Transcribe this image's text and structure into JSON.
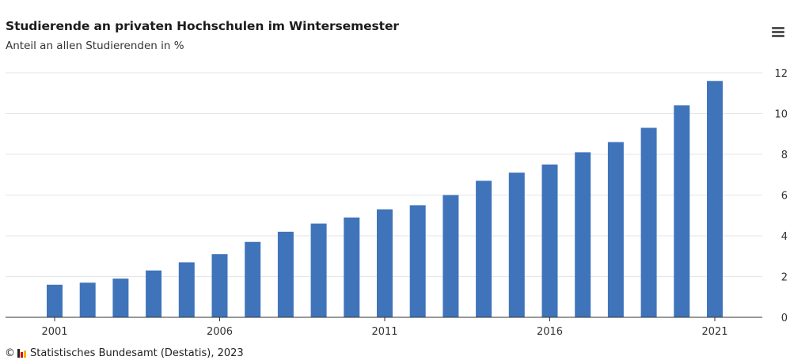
{
  "chart_title": "Studierende an privaten Hochschulen im Wintersemester",
  "chart_subtitle": "Anteil an allen Studierenden in %",
  "menu": {
    "icon": "hamburger-menu-icon"
  },
  "footer": {
    "copyright": "©",
    "logo_icon": "destatis-logo-icon",
    "source": "Statistisches Bundesamt (Destatis), 2023"
  },
  "colors": {
    "bar": "#3f74bb",
    "grid": "#e6e6e6",
    "axis": "#333333"
  },
  "chart_data": {
    "type": "bar",
    "title": "Studierende an privaten Hochschulen im Wintersemester",
    "subtitle": "Anteil an allen Studierenden in %",
    "xlabel": "",
    "ylabel": "",
    "x": [
      2001,
      2002,
      2003,
      2004,
      2005,
      2006,
      2007,
      2008,
      2009,
      2010,
      2011,
      2012,
      2013,
      2014,
      2015,
      2016,
      2017,
      2018,
      2019,
      2020,
      2021
    ],
    "values": [
      1.6,
      1.7,
      1.9,
      2.3,
      2.7,
      3.1,
      3.7,
      4.2,
      4.6,
      4.9,
      5.3,
      5.5,
      6.0,
      6.7,
      7.1,
      7.5,
      8.1,
      8.6,
      9.3,
      10.4,
      11.6
    ],
    "x_ticks": [
      "2001",
      "2006",
      "2011",
      "2016",
      "2021"
    ],
    "y_ticks": [
      "0",
      "2",
      "4",
      "6",
      "8",
      "10",
      "12"
    ],
    "ylim": [
      0,
      12
    ],
    "y_axis_side": "right",
    "grid": true,
    "legend": "none"
  }
}
